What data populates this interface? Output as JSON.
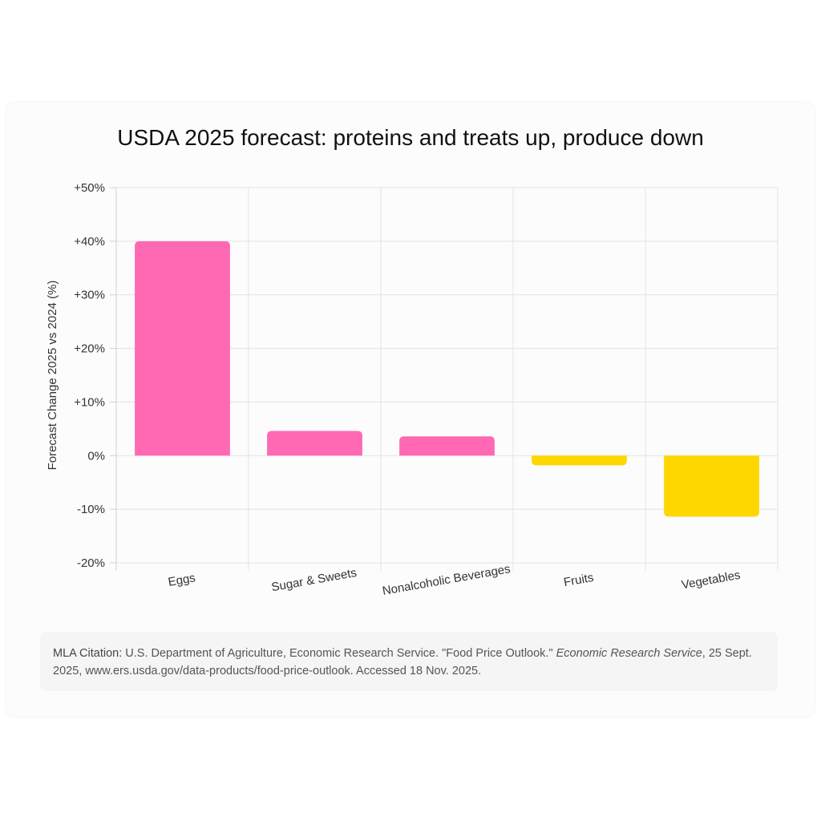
{
  "chart_data": {
    "type": "bar",
    "title": "USDA 2025 forecast: proteins and treats up, produce down",
    "xlabel": "",
    "ylabel": "Forecast Change 2025 vs 2024 (%)",
    "categories": [
      "Eggs",
      "Sugar & Sweets",
      "Nonalcoholic Beverages",
      "Fruits",
      "Vegetables"
    ],
    "values": [
      40.0,
      4.6,
      3.6,
      -1.8,
      -11.4
    ],
    "colors": [
      "#ff69b4",
      "#ff69b4",
      "#ff69b4",
      "#ffd700",
      "#ffd700"
    ],
    "ylim": [
      -20,
      50
    ],
    "yticks": [
      50,
      40,
      30,
      20,
      10,
      0,
      -10,
      -20
    ],
    "ytick_labels": [
      "+50%",
      "+40%",
      "+30%",
      "+20%",
      "+10%",
      "0%",
      "-10%",
      "-20%"
    ],
    "grid": true,
    "legend": "none"
  },
  "citation": {
    "label": "MLA Citation:",
    "part1": " U.S. Department of Agriculture, Economic Research Service. \"Food Price Outlook.\" ",
    "italic": "Economic Research Service",
    "part2": ", 25 Sept. 2025, www.ers.usda.gov/data-products/food-price-outlook. Accessed 18 Nov. 2025."
  }
}
